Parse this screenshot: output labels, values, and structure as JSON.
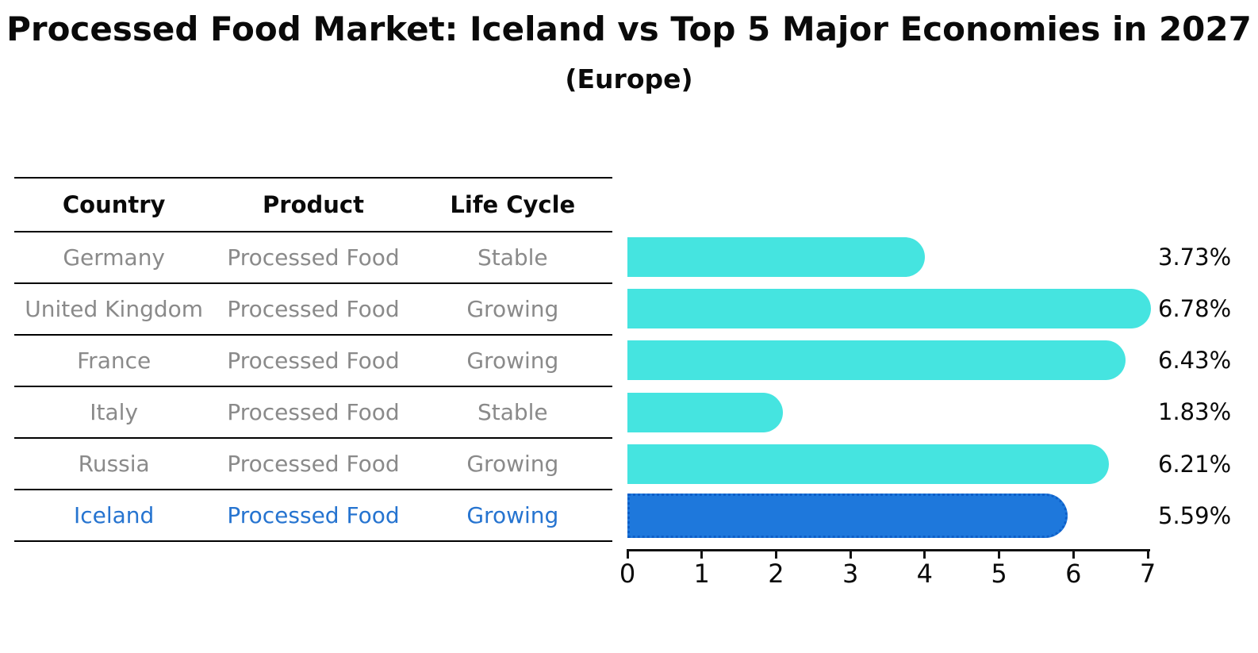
{
  "header": {
    "title": "Processed Food Market: Iceland vs Top 5 Major Economies in 2027",
    "subtitle": "(Europe)"
  },
  "table": {
    "headers": [
      "Country",
      "Product",
      "Life Cycle"
    ],
    "rows": [
      {
        "country": "Germany",
        "product": "Processed Food",
        "life_cycle": "Stable",
        "highlight": false
      },
      {
        "country": "United Kingdom",
        "product": "Processed Food",
        "life_cycle": "Growing",
        "highlight": false
      },
      {
        "country": "France",
        "product": "Processed Food",
        "life_cycle": "Growing",
        "highlight": false
      },
      {
        "country": "Italy",
        "product": "Processed Food",
        "life_cycle": "Stable",
        "highlight": false
      },
      {
        "country": "Russia",
        "product": "Processed Food",
        "life_cycle": "Growing",
        "highlight": false
      },
      {
        "country": "Iceland",
        "product": "Processed Food",
        "life_cycle": "Growing",
        "highlight": true
      }
    ]
  },
  "chart_data": {
    "type": "bar",
    "orientation": "horizontal",
    "title": "Processed Food Market: Iceland vs Top 5 Major Economies in 2027",
    "subtitle": "(Europe)",
    "categories": [
      "Germany",
      "United Kingdom",
      "France",
      "Italy",
      "Russia",
      "Iceland"
    ],
    "values": [
      3.73,
      6.78,
      6.43,
      1.83,
      6.21,
      5.59
    ],
    "value_labels": [
      "3.73%",
      "6.78%",
      "6.43%",
      "1.83%",
      "6.21%",
      "5.59%"
    ],
    "xlim": [
      0,
      7
    ],
    "x_ticks": [
      "0",
      "1",
      "2",
      "3",
      "4",
      "5",
      "6",
      "7"
    ],
    "highlight_category": "Iceland",
    "grid": false,
    "legend": "none"
  },
  "colors": {
    "bar": "#45e4e0",
    "highlight_bar": "#1e78dc",
    "highlight_border": "#0e5fc8",
    "row_text": "#8a8a8a",
    "highlight_text": "#2674d0",
    "axis": "#111111"
  }
}
